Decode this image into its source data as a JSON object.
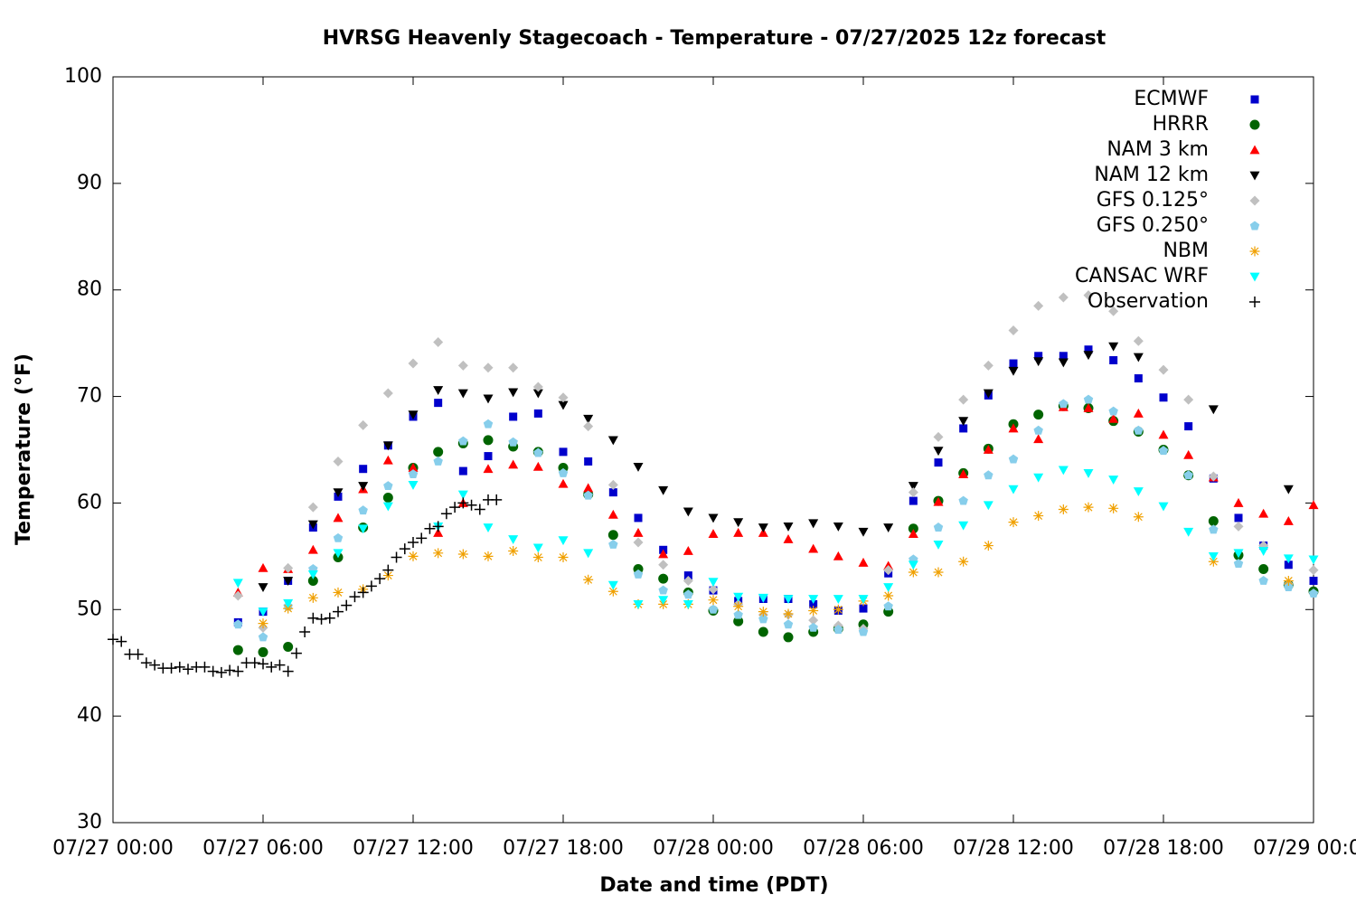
{
  "chart_data": {
    "type": "scatter",
    "title": "HVRSG Heavenly Stagecoach - Temperature - 07/27/2025 12z forecast",
    "x_label": "Date and time (PDT)",
    "y_label": "Temperature (°F)",
    "xlim": [
      "07/27 00:00",
      "07/29 00:00"
    ],
    "xticks": [
      "07/27 00:00",
      "07/27 06:00",
      "07/27 12:00",
      "07/27 18:00",
      "07/28 00:00",
      "07/28 06:00",
      "07/28 12:00",
      "07/28 18:00",
      "07/29 00:00"
    ],
    "ylim": [
      30,
      100
    ],
    "yticks": [
      30,
      40,
      50,
      60,
      70,
      80,
      90,
      100
    ],
    "grid": false,
    "legend": "top-right",
    "x": [
      "07/27 05:00",
      "07/27 06:00",
      "07/27 07:00",
      "07/27 08:00",
      "07/27 09:00",
      "07/27 10:00",
      "07/27 11:00",
      "07/27 12:00",
      "07/27 13:00",
      "07/27 14:00",
      "07/27 15:00",
      "07/27 16:00",
      "07/27 17:00",
      "07/27 18:00",
      "07/27 19:00",
      "07/27 20:00",
      "07/27 21:00",
      "07/27 22:00",
      "07/27 23:00",
      "07/28 00:00",
      "07/28 01:00",
      "07/28 02:00",
      "07/28 03:00",
      "07/28 04:00",
      "07/28 05:00",
      "07/28 06:00",
      "07/28 07:00",
      "07/28 08:00",
      "07/28 09:00",
      "07/28 10:00",
      "07/28 11:00",
      "07/28 12:00",
      "07/28 13:00",
      "07/28 14:00",
      "07/28 15:00",
      "07/28 16:00",
      "07/28 17:00",
      "07/28 18:00",
      "07/28 19:00",
      "07/28 20:00",
      "07/28 21:00",
      "07/28 22:00",
      "07/28 23:00",
      "07/29 00:00"
    ],
    "series": [
      {
        "name": "ECMWF",
        "color": "#0000cc",
        "marker": "square",
        "values": [
          48.8,
          49.8,
          52.7,
          57.7,
          60.6,
          63.2,
          65.4,
          68.1,
          69.4,
          63.0,
          64.4,
          68.1,
          68.4,
          64.8,
          63.9,
          61.0,
          58.6,
          55.6,
          53.2,
          51.8,
          50.8,
          51.0,
          51.0,
          50.5,
          49.9,
          50.1,
          53.4,
          60.2,
          63.8,
          67.0,
          70.1,
          73.1,
          73.8,
          73.8,
          74.4,
          73.4,
          71.7,
          69.9,
          67.2,
          62.3,
          58.6,
          56.0,
          54.2,
          52.7
        ]
      },
      {
        "name": "HRRR",
        "color": "#006400",
        "marker": "circle",
        "values": [
          46.2,
          46.0,
          46.5,
          52.7,
          54.9,
          57.7,
          60.5,
          63.3,
          64.8,
          65.6,
          65.9,
          65.3,
          64.8,
          63.3,
          60.8,
          57.0,
          53.8,
          52.9,
          51.6,
          49.9,
          48.9,
          47.9,
          47.4,
          47.9,
          48.2,
          48.6,
          49.8,
          57.6,
          60.2,
          62.8,
          65.1,
          67.4,
          68.3,
          69.1,
          68.9,
          67.7,
          66.7,
          65.0,
          62.6,
          58.3,
          55.1,
          53.8,
          52.3,
          51.7
        ]
      },
      {
        "name": "NAM 3 km",
        "color": "#ff0000",
        "marker": "triangle-up",
        "values": [
          51.6,
          53.9,
          53.8,
          55.6,
          58.6,
          61.3,
          64.0,
          63.3,
          57.2,
          60.0,
          63.2,
          63.6,
          63.4,
          61.8,
          61.4,
          58.9,
          57.2,
          55.2,
          55.5,
          57.1,
          57.2,
          57.2,
          56.6,
          55.7,
          55.0,
          54.4,
          54.1,
          57.1,
          60.1,
          62.7,
          65.0,
          67.0,
          66.0,
          69.0,
          68.9,
          67.9,
          68.4,
          66.4,
          64.5,
          62.4,
          60.0,
          59.0,
          58.3,
          59.8
        ]
      },
      {
        "name": "NAM 12 km",
        "color": "#000000",
        "marker": "triangle-down",
        "values": [
          null,
          52.1,
          52.7,
          58.0,
          61.0,
          61.6,
          65.4,
          68.3,
          70.6,
          70.3,
          69.8,
          70.4,
          70.3,
          69.2,
          67.9,
          65.9,
          63.4,
          61.2,
          59.2,
          58.6,
          58.2,
          57.7,
          57.8,
          58.1,
          57.8,
          57.3,
          57.7,
          61.6,
          64.9,
          67.7,
          70.3,
          72.4,
          73.3,
          73.2,
          73.9,
          74.7,
          73.7,
          null,
          null,
          68.8,
          null,
          null,
          61.3,
          null
        ]
      },
      {
        "name": "GFS 0.125°",
        "color": "#c0c0c0",
        "marker": "diamond",
        "values": [
          51.3,
          48.3,
          53.9,
          59.6,
          63.9,
          67.3,
          70.3,
          73.1,
          75.1,
          72.9,
          72.7,
          72.7,
          70.9,
          69.9,
          67.2,
          61.7,
          56.3,
          54.2,
          52.7,
          51.9,
          50.5,
          49.5,
          49.5,
          49.0,
          48.5,
          48.2,
          53.7,
          61.0,
          66.2,
          69.7,
          72.9,
          76.2,
          78.5,
          79.3,
          79.5,
          78.0,
          75.2,
          72.5,
          69.7,
          62.5,
          57.8,
          56.0,
          52.4,
          53.7
        ]
      },
      {
        "name": "GFS 0.250°",
        "color": "#87ceeb",
        "marker": "pentagon",
        "values": [
          48.6,
          47.4,
          50.3,
          53.8,
          56.7,
          59.3,
          61.6,
          62.7,
          63.9,
          65.8,
          67.4,
          65.7,
          64.7,
          62.8,
          60.7,
          56.1,
          53.3,
          51.8,
          51.4,
          50.0,
          49.5,
          49.1,
          48.6,
          48.3,
          48.1,
          47.9,
          50.3,
          54.7,
          57.7,
          60.2,
          62.6,
          64.1,
          66.8,
          69.3,
          69.7,
          68.6,
          66.8,
          64.9,
          62.6,
          57.5,
          54.3,
          52.7,
          52.1,
          51.5
        ]
      },
      {
        "name": "NBM",
        "color": "#f0a000",
        "marker": "asterisk",
        "values": [
          null,
          48.7,
          50.1,
          51.1,
          51.6,
          51.9,
          53.2,
          55.0,
          55.3,
          55.2,
          55.0,
          55.5,
          54.9,
          54.9,
          52.8,
          51.7,
          50.5,
          50.5,
          50.5,
          50.9,
          50.3,
          49.8,
          49.6,
          49.9,
          50.0,
          50.8,
          51.3,
          53.5,
          53.5,
          54.5,
          56.0,
          58.2,
          58.8,
          59.4,
          59.6,
          59.5,
          58.7,
          null,
          null,
          54.5,
          null,
          null,
          52.7,
          null
        ]
      },
      {
        "name": "CANSAC WRF",
        "color": "#00ffff",
        "marker": "triangle-down",
        "values": [
          52.5,
          49.8,
          50.6,
          53.3,
          55.3,
          57.6,
          59.7,
          61.7,
          57.8,
          60.8,
          57.7,
          56.6,
          55.8,
          56.5,
          55.3,
          52.3,
          50.5,
          50.9,
          50.5,
          52.6,
          51.2,
          51.1,
          51.0,
          51.0,
          51.0,
          51.0,
          52.1,
          54.2,
          56.1,
          57.9,
          59.8,
          61.3,
          62.4,
          63.1,
          62.8,
          62.2,
          61.1,
          59.7,
          57.3,
          55.0,
          55.3,
          55.5,
          54.8,
          54.7
        ]
      },
      {
        "name": "Observation",
        "color": "#000000",
        "marker": "plus",
        "x": [
          "07/27 00:00",
          "07/27 00:20",
          "07/27 00:40",
          "07/27 01:00",
          "07/27 01:20",
          "07/27 01:40",
          "07/27 02:00",
          "07/27 02:20",
          "07/27 02:40",
          "07/27 03:00",
          "07/27 03:20",
          "07/27 03:40",
          "07/27 04:00",
          "07/27 04:20",
          "07/27 04:40",
          "07/27 05:00",
          "07/27 05:20",
          "07/27 05:40",
          "07/27 06:00",
          "07/27 06:20",
          "07/27 06:40",
          "07/27 07:00",
          "07/27 07:20",
          "07/27 07:40",
          "07/27 08:00",
          "07/27 08:20",
          "07/27 08:40",
          "07/27 09:00",
          "07/27 09:20",
          "07/27 09:40",
          "07/27 10:00",
          "07/27 10:20",
          "07/27 10:40",
          "07/27 11:00",
          "07/27 11:20",
          "07/27 11:40",
          "07/27 12:00",
          "07/27 12:20",
          "07/27 12:40",
          "07/27 13:00",
          "07/27 13:20",
          "07/27 13:40",
          "07/27 14:00",
          "07/27 14:20",
          "07/27 14:40",
          "07/27 15:00",
          "07/27 15:20"
        ],
        "values": [
          47.2,
          47.0,
          45.8,
          45.8,
          45.0,
          44.8,
          44.5,
          44.5,
          44.6,
          44.4,
          44.6,
          44.6,
          44.2,
          44.1,
          44.3,
          44.2,
          45.0,
          45.0,
          44.9,
          44.6,
          44.8,
          44.2,
          45.9,
          47.9,
          49.2,
          49.1,
          49.2,
          49.8,
          50.4,
          51.2,
          51.6,
          52.2,
          52.9,
          53.7,
          54.9,
          55.7,
          56.3,
          56.7,
          57.6,
          57.8,
          59.0,
          59.6,
          60.0,
          59.8,
          59.4,
          60.3,
          60.3
        ]
      }
    ]
  }
}
